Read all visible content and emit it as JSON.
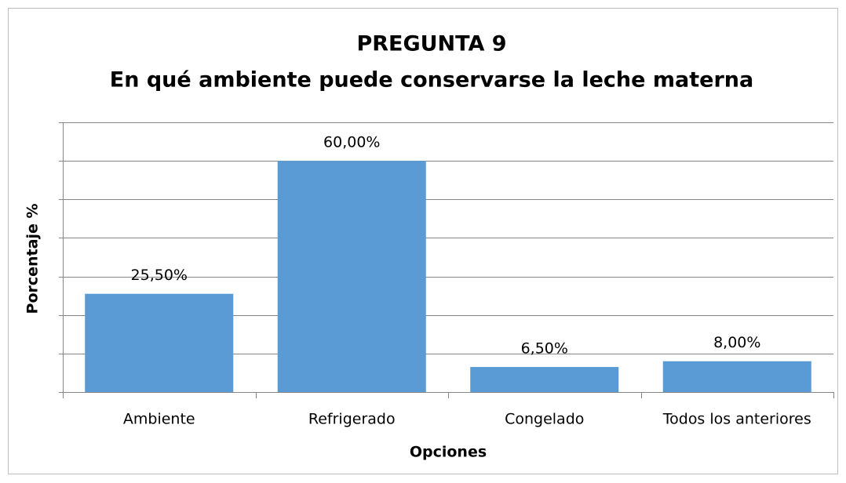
{
  "chart_data": {
    "type": "bar",
    "title": "PREGUNTA 9",
    "subtitle": "En qué ambiente puede conservarse la leche materna",
    "x_label": "Opciones",
    "y_label": "Porcentaje %",
    "categories": [
      "Ambiente",
      "Refrigerado",
      "Congelado",
      "Todos los anteriores"
    ],
    "values": [
      25.5,
      60,
      6.5,
      8
    ],
    "value_labels": [
      "25,50%",
      "60,00%",
      "6,50%",
      "8,00%"
    ],
    "color": "#5b9bd5",
    "ylim": [
      0,
      70
    ],
    "yticks": [
      0,
      10,
      20,
      30,
      40,
      50,
      60,
      70
    ],
    "grid": true
  }
}
